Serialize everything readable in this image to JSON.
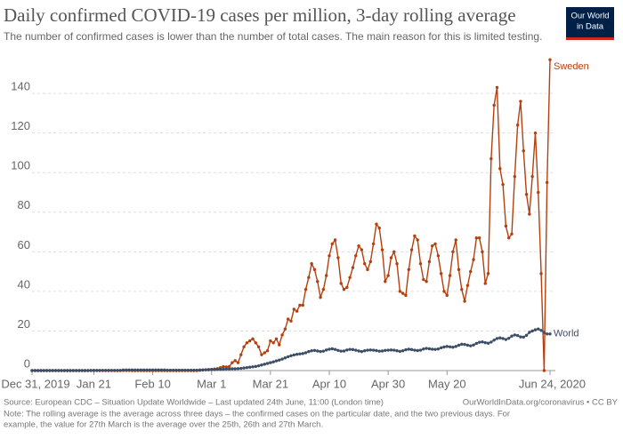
{
  "chart_data": {
    "type": "line",
    "title": "Daily confirmed COVID-19 cases per million, 3-day rolling average",
    "subtitle": "The number of confirmed cases is lower than the number of total cases. The main reason for this is limited testing.",
    "logo": [
      "Our World",
      "in Data"
    ],
    "source": "Source: European CDC – Situation Update Worldwide – Last updated 24th June, 11:00 (London time)",
    "source_right": "OurWorldInData.org/coronavirus • CC BY",
    "note": [
      "Note: The rolling average is the average across three days – the confirmed cases on the particular date, and the two previous days. For",
      "example, the value for 27th March is the average over the 25th, 26th and 27th March."
    ],
    "xlim": [
      "2019-12-31",
      "2020-06-24"
    ],
    "xticks": [
      {
        "value": "2019-12-31",
        "label": "Dec 31, 2019"
      },
      {
        "value": "2020-01-21",
        "label": "Jan 21"
      },
      {
        "value": "2020-02-10",
        "label": "Feb 10"
      },
      {
        "value": "2020-03-01",
        "label": "Mar 1"
      },
      {
        "value": "2020-03-21",
        "label": "Mar 21"
      },
      {
        "value": "2020-04-10",
        "label": "Apr 10"
      },
      {
        "value": "2020-04-30",
        "label": "Apr 30"
      },
      {
        "value": "2020-05-20",
        "label": "May 20"
      },
      {
        "value": "2020-06-24",
        "label": "Jun 24, 2020"
      }
    ],
    "ylim": [
      0,
      158
    ],
    "yticks": [
      0,
      20,
      40,
      60,
      80,
      100,
      120,
      140
    ],
    "grid": true,
    "x": [
      "2019-12-31",
      "2020-01-01",
      "2020-01-02",
      "2020-01-03",
      "2020-01-04",
      "2020-01-05",
      "2020-01-06",
      "2020-01-07",
      "2020-01-08",
      "2020-01-09",
      "2020-01-10",
      "2020-01-11",
      "2020-01-12",
      "2020-01-13",
      "2020-01-14",
      "2020-01-15",
      "2020-01-16",
      "2020-01-17",
      "2020-01-18",
      "2020-01-19",
      "2020-01-20",
      "2020-01-21",
      "2020-01-22",
      "2020-01-23",
      "2020-01-24",
      "2020-01-25",
      "2020-01-26",
      "2020-01-27",
      "2020-01-28",
      "2020-01-29",
      "2020-01-30",
      "2020-01-31",
      "2020-02-01",
      "2020-02-02",
      "2020-02-03",
      "2020-02-04",
      "2020-02-05",
      "2020-02-06",
      "2020-02-07",
      "2020-02-08",
      "2020-02-09",
      "2020-02-10",
      "2020-02-11",
      "2020-02-12",
      "2020-02-13",
      "2020-02-14",
      "2020-02-15",
      "2020-02-16",
      "2020-02-17",
      "2020-02-18",
      "2020-02-19",
      "2020-02-20",
      "2020-02-21",
      "2020-02-22",
      "2020-02-23",
      "2020-02-24",
      "2020-02-25",
      "2020-02-26",
      "2020-02-27",
      "2020-02-28",
      "2020-02-29",
      "2020-03-01",
      "2020-03-02",
      "2020-03-03",
      "2020-03-04",
      "2020-03-05",
      "2020-03-06",
      "2020-03-07",
      "2020-03-08",
      "2020-03-09",
      "2020-03-10",
      "2020-03-11",
      "2020-03-12",
      "2020-03-13",
      "2020-03-14",
      "2020-03-15",
      "2020-03-16",
      "2020-03-17",
      "2020-03-18",
      "2020-03-19",
      "2020-03-20",
      "2020-03-21",
      "2020-03-22",
      "2020-03-23",
      "2020-03-24",
      "2020-03-25",
      "2020-03-26",
      "2020-03-27",
      "2020-03-28",
      "2020-03-29",
      "2020-03-30",
      "2020-03-31",
      "2020-04-01",
      "2020-04-02",
      "2020-04-03",
      "2020-04-04",
      "2020-04-05",
      "2020-04-06",
      "2020-04-07",
      "2020-04-08",
      "2020-04-09",
      "2020-04-10",
      "2020-04-11",
      "2020-04-12",
      "2020-04-13",
      "2020-04-14",
      "2020-04-15",
      "2020-04-16",
      "2020-04-17",
      "2020-04-18",
      "2020-04-19",
      "2020-04-20",
      "2020-04-21",
      "2020-04-22",
      "2020-04-23",
      "2020-04-24",
      "2020-04-25",
      "2020-04-26",
      "2020-04-27",
      "2020-04-28",
      "2020-04-29",
      "2020-04-30",
      "2020-05-01",
      "2020-05-02",
      "2020-05-03",
      "2020-05-04",
      "2020-05-05",
      "2020-05-06",
      "2020-05-07",
      "2020-05-08",
      "2020-05-09",
      "2020-05-10",
      "2020-05-11",
      "2020-05-12",
      "2020-05-13",
      "2020-05-14",
      "2020-05-15",
      "2020-05-16",
      "2020-05-17",
      "2020-05-18",
      "2020-05-19",
      "2020-05-20",
      "2020-05-21",
      "2020-05-22",
      "2020-05-23",
      "2020-05-24",
      "2020-05-25",
      "2020-05-26",
      "2020-05-27",
      "2020-05-28",
      "2020-05-29",
      "2020-05-30",
      "2020-05-31",
      "2020-06-01",
      "2020-06-02",
      "2020-06-03",
      "2020-06-04",
      "2020-06-05",
      "2020-06-06",
      "2020-06-07",
      "2020-06-08",
      "2020-06-09",
      "2020-06-10",
      "2020-06-11",
      "2020-06-12",
      "2020-06-13",
      "2020-06-14",
      "2020-06-15",
      "2020-06-16",
      "2020-06-17",
      "2020-06-18",
      "2020-06-19",
      "2020-06-20",
      "2020-06-21",
      "2020-06-22",
      "2020-06-23",
      "2020-06-24"
    ],
    "series": [
      {
        "name": "Sweden",
        "color": "#b5400f",
        "values": [
          0,
          0,
          0,
          0,
          0,
          0,
          0,
          0,
          0,
          0,
          0,
          0,
          0,
          0,
          0,
          0,
          0,
          0,
          0,
          0,
          0,
          0,
          0,
          0,
          0,
          0,
          0,
          0,
          0,
          0,
          0,
          0.03,
          0.03,
          0.03,
          0,
          0,
          0,
          0,
          0,
          0,
          0,
          0,
          0,
          0,
          0,
          0,
          0,
          0,
          0,
          0,
          0,
          0,
          0,
          0,
          0,
          0,
          0,
          0.1,
          0.3,
          0.4,
          0.5,
          0.6,
          0.8,
          1.0,
          1.5,
          2.0,
          1.8,
          2,
          4,
          5,
          4,
          8,
          12,
          14,
          15,
          16,
          14,
          12,
          8,
          9,
          10,
          15,
          14,
          16,
          13,
          18,
          21,
          26,
          25,
          31,
          30,
          33,
          33,
          41,
          47,
          54,
          51,
          45,
          37,
          41,
          48,
          58,
          64,
          66,
          57,
          44,
          41,
          42,
          47,
          52,
          58,
          63,
          61,
          54,
          51,
          55,
          64,
          74,
          72,
          61,
          45,
          48,
          57,
          60,
          54,
          40,
          39,
          38,
          51,
          61,
          68,
          66,
          54,
          46,
          45,
          55,
          63,
          64,
          58,
          49,
          40,
          38,
          48,
          60,
          66,
          51,
          41,
          35,
          43,
          50,
          56,
          67,
          67,
          60,
          44,
          49,
          107,
          134,
          143,
          102,
          94,
          73,
          67,
          69,
          98,
          124,
          136,
          111,
          89,
          79,
          98,
          120,
          90,
          49,
          0,
          95,
          157
        ]
      },
      {
        "name": "World",
        "color": "#3c4e66",
        "values": [
          0,
          0,
          0,
          0,
          0,
          0,
          0,
          0,
          0,
          0,
          0,
          0,
          0,
          0,
          0,
          0,
          0,
          0,
          0,
          0,
          0.1,
          0.1,
          0.1,
          0.1,
          0.1,
          0.1,
          0.1,
          0.1,
          0.1,
          0.1,
          0.1,
          0.3,
          0.3,
          0.3,
          0.3,
          0.3,
          0.3,
          0.3,
          0.3,
          0.3,
          0.3,
          0.3,
          0.3,
          0.3,
          0.3,
          0.3,
          0.2,
          0.2,
          0.2,
          0.2,
          0.2,
          0.2,
          0.2,
          0.2,
          0.2,
          0.2,
          0.2,
          0.3,
          0.3,
          0.4,
          0.4,
          0.5,
          0.5,
          0.6,
          0.6,
          0.7,
          0.8,
          0.8,
          0.9,
          0.9,
          1.0,
          1.1,
          1.3,
          1.5,
          1.7,
          1.9,
          2.1,
          2.4,
          2.8,
          3.2,
          3.6,
          4.0,
          4.4,
          4.9,
          5.3,
          5.8,
          6.4,
          7.0,
          7.5,
          7.9,
          8.2,
          8.4,
          8.6,
          9.0,
          9.6,
          10.0,
          10.2,
          9.9,
          9.6,
          9.8,
          10.4,
          10.8,
          11.0,
          10.7,
          10.2,
          9.8,
          9.9,
          10.4,
          10.7,
          10.6,
          10.3,
          9.9,
          9.6,
          10.0,
          10.3,
          10.4,
          10.3,
          10.1,
          9.8,
          9.9,
          10.2,
          10.3,
          10.4,
          10.3,
          10.0,
          9.7,
          10.0,
          10.5,
          10.8,
          10.6,
          10.3,
          10.1,
          10.3,
          10.9,
          11.2,
          11.0,
          10.8,
          10.7,
          10.9,
          11.5,
          11.9,
          12.2,
          12.0,
          11.8,
          12.2,
          12.8,
          13.3,
          13.2,
          12.8,
          12.5,
          12.9,
          13.7,
          14.3,
          14.5,
          14.1,
          13.8,
          14.4,
          15.4,
          16.2,
          16.5,
          16.2,
          15.7,
          16.3,
          17.4,
          18.0,
          17.7,
          17.0,
          16.9,
          17.8,
          19.3,
          20.0,
          20.6,
          21.0,
          20.3,
          19.2,
          18.5,
          18.5
        ]
      }
    ]
  }
}
